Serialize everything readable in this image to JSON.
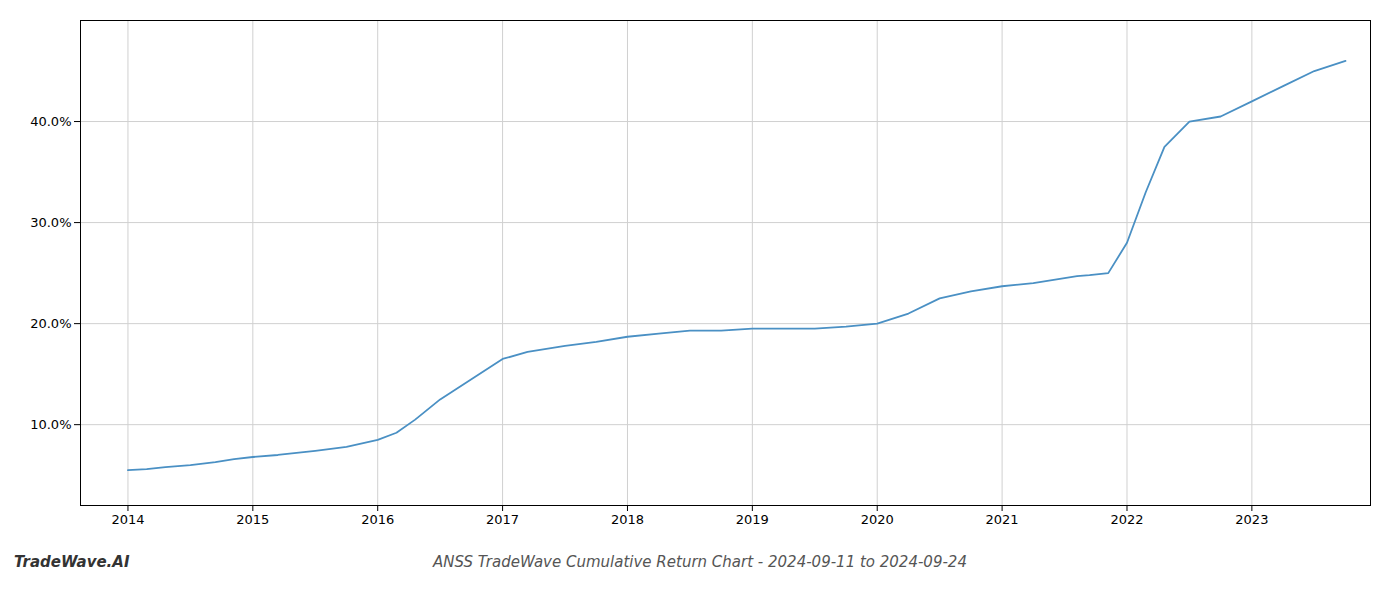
{
  "chart_data": {
    "type": "line",
    "title": "ANSS TradeWave Cumulative Return Chart - 2024-09-11 to 2024-09-24",
    "annotations": [
      "TradeWave.AI"
    ],
    "color": "#4a90c4",
    "x": [
      2014.0,
      2014.15,
      2014.3,
      2014.5,
      2014.7,
      2014.85,
      2015.0,
      2015.2,
      2015.5,
      2015.75,
      2016.0,
      2016.15,
      2016.3,
      2016.5,
      2016.75,
      2017.0,
      2017.2,
      2017.5,
      2017.75,
      2018.0,
      2018.25,
      2018.5,
      2018.75,
      2019.0,
      2019.25,
      2019.5,
      2019.75,
      2020.0,
      2020.25,
      2020.5,
      2020.75,
      2021.0,
      2021.25,
      2021.5,
      2021.6,
      2021.7,
      2021.85,
      2022.0,
      2022.15,
      2022.3,
      2022.5,
      2022.75,
      2023.0,
      2023.25,
      2023.5,
      2023.75
    ],
    "values": [
      5.5,
      5.6,
      5.8,
      6.0,
      6.3,
      6.6,
      6.8,
      7.0,
      7.4,
      7.8,
      8.5,
      9.2,
      10.5,
      12.5,
      14.5,
      16.5,
      17.2,
      17.8,
      18.2,
      18.7,
      19.0,
      19.3,
      19.3,
      19.5,
      19.5,
      19.5,
      19.7,
      20.0,
      21.0,
      22.5,
      23.2,
      23.7,
      24.0,
      24.5,
      24.7,
      24.8,
      25.0,
      28.0,
      33.0,
      37.5,
      40.0,
      40.5,
      42.0,
      43.5,
      45.0,
      46.0
    ],
    "xlim": [
      2013.62,
      2023.95
    ],
    "xticks": [
      2014,
      2015,
      2016,
      2017,
      2018,
      2019,
      2020,
      2021,
      2022,
      2023
    ],
    "ylim": [
      2.0,
      50.0
    ],
    "yticks": [
      {
        "value": 10.0,
        "label": "10.0%"
      },
      {
        "value": 20.0,
        "label": "20.0%"
      },
      {
        "value": 30.0,
        "label": "30.0%"
      },
      {
        "value": 40.0,
        "label": "40.0%"
      }
    ],
    "grid": true
  }
}
